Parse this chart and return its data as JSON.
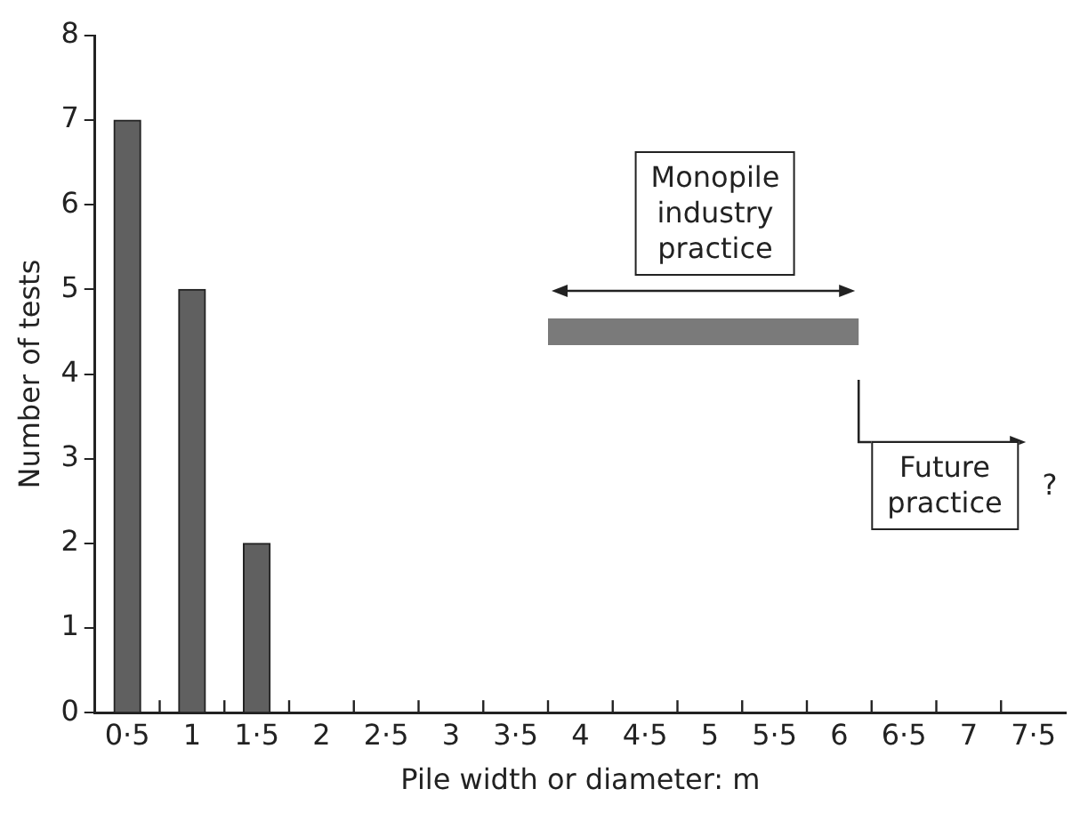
{
  "chart_data": {
    "type": "bar",
    "xlabel": "Pile width or diameter: m",
    "ylabel": "Number of tests",
    "x": [
      0.5,
      1,
      1.5
    ],
    "xlim": [
      0.25,
      7.75
    ],
    "xticks": [
      {
        "value": 0.5,
        "label": "0·5"
      },
      {
        "value": 0.75,
        "label": null
      },
      {
        "value": 1,
        "label": "1"
      },
      {
        "value": 1.25,
        "label": null
      },
      {
        "value": 1.5,
        "label": "1·5"
      },
      {
        "value": 1.75,
        "label": null
      },
      {
        "value": 2,
        "label": "2"
      },
      {
        "value": 2.25,
        "label": null
      },
      {
        "value": 2.5,
        "label": "2·5"
      },
      {
        "value": 2.75,
        "label": null
      },
      {
        "value": 3,
        "label": "3"
      },
      {
        "value": 3.25,
        "label": null
      },
      {
        "value": 3.5,
        "label": "3·5"
      },
      {
        "value": 3.75,
        "label": null
      },
      {
        "value": 4,
        "label": "4"
      },
      {
        "value": 4.25,
        "label": null
      },
      {
        "value": 4.5,
        "label": "4·5"
      },
      {
        "value": 4.75,
        "label": null
      },
      {
        "value": 5,
        "label": "5"
      },
      {
        "value": 5.25,
        "label": null
      },
      {
        "value": 5.5,
        "label": "5·5"
      },
      {
        "value": 5.75,
        "label": null
      },
      {
        "value": 6,
        "label": "6"
      },
      {
        "value": 6.25,
        "label": null
      },
      {
        "value": 6.5,
        "label": "6·5"
      },
      {
        "value": 6.75,
        "label": null
      },
      {
        "value": 7,
        "label": "7"
      },
      {
        "value": 7.25,
        "label": null
      },
      {
        "value": 7.5,
        "label": "7·5"
      }
    ],
    "ylim": [
      0,
      8
    ],
    "yticks": [
      0,
      1,
      2,
      3,
      4,
      5,
      6,
      7,
      8
    ],
    "grid": false,
    "legend": false,
    "marker": "none",
    "series": [
      {
        "color": "#606060",
        "values": [
          7,
          5,
          2
        ]
      },
      {
        "type": "line",
        "x": [
          3.75,
          6.15
        ],
        "values": [
          4.5,
          4.5
        ],
        "color": "#7a7a7a"
      }
    ],
    "annotations": [
      "Monopile industry practice",
      "Future practice",
      "?"
    ]
  }
}
